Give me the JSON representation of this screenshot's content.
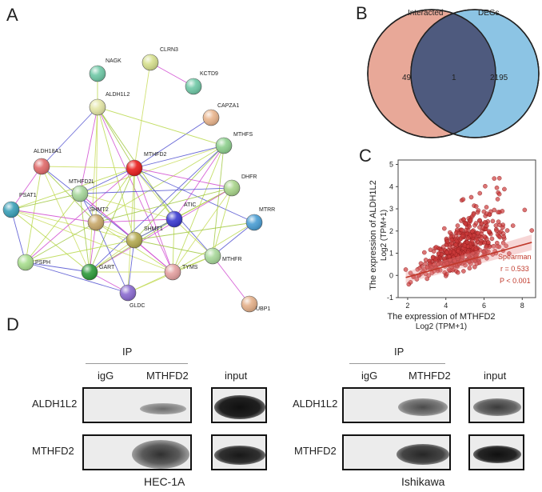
{
  "panels": {
    "a": "A",
    "b": "B",
    "c": "C",
    "d": "D"
  },
  "network": {
    "nodes": [
      {
        "id": "NAGK",
        "label": "NAGK",
        "color": "#6fc8a6"
      },
      {
        "id": "CLRN3",
        "label": "CLRN3",
        "color": "#d6e08e"
      },
      {
        "id": "KCTD9",
        "label": "KCTD9",
        "color": "#6fc8a6"
      },
      {
        "id": "ALDH1L2",
        "label": "ALDH1L2",
        "color": "#e4e6a6"
      },
      {
        "id": "CAPZA1",
        "label": "CAPZA1",
        "color": "#e9b48c"
      },
      {
        "id": "MTHFS",
        "label": "MTHFS",
        "color": "#8ed08e"
      },
      {
        "id": "ALDH18A1",
        "label": "ALDH18A1",
        "color": "#e06a6a"
      },
      {
        "id": "MTHFD2",
        "label": "MTHFD2",
        "color": "#e81c1c"
      },
      {
        "id": "DHFR",
        "label": "DHFR",
        "color": "#a8d48a"
      },
      {
        "id": "PSAT1",
        "label": "PSAT1",
        "color": "#3aa0b8"
      },
      {
        "id": "MTHFD2L",
        "label": "MTHFD2L",
        "color": "#a6d69a"
      },
      {
        "id": "ATIC",
        "label": "ATIC",
        "color": "#3a3ad0"
      },
      {
        "id": "MTRR",
        "label": "MTRR",
        "color": "#4a9ed4"
      },
      {
        "id": "SHMT2",
        "label": "SHMT2",
        "color": "#c8a86a"
      },
      {
        "id": "SHMT1",
        "label": "SHMT1",
        "color": "#b4aa50"
      },
      {
        "id": "PSPH",
        "label": "PSPH",
        "color": "#a8de8e"
      },
      {
        "id": "GART",
        "label": "GART",
        "color": "#2e9a3a"
      },
      {
        "id": "TYMS",
        "label": "TYMS",
        "color": "#e4a0a0"
      },
      {
        "id": "MTHFR",
        "label": "MTHFR",
        "color": "#a8d89a"
      },
      {
        "id": "GLDC",
        "label": "GLDC",
        "color": "#8a6ad0"
      },
      {
        "id": "UBP1",
        "label": "UBP1",
        "color": "#e4b08a"
      }
    ],
    "edges": [
      [
        "NAGK",
        "ALDH1L2"
      ],
      [
        "CLRN3",
        "MTHFD2"
      ],
      [
        "CLRN3",
        "KCTD9"
      ],
      [
        "CAPZA1",
        "MTHFD2"
      ],
      [
        "ALDH1L2",
        "MTHFD2"
      ],
      [
        "ALDH1L2",
        "SHMT1"
      ],
      [
        "ALDH1L2",
        "SHMT2"
      ],
      [
        "ALDH1L2",
        "MTHFD2L"
      ],
      [
        "ALDH1L2",
        "ALDH18A1"
      ],
      [
        "ALDH1L2",
        "ATIC"
      ],
      [
        "ALDH1L2",
        "MTHFS"
      ],
      [
        "ALDH1L2",
        "GART"
      ],
      [
        "ALDH1L2",
        "TYMS"
      ],
      [
        "MTHFS",
        "MTHFD2"
      ],
      [
        "MTHFS",
        "SHMT1"
      ],
      [
        "MTHFS",
        "SHMT2"
      ],
      [
        "MTHFS",
        "MTHFD2L"
      ],
      [
        "MTHFS",
        "ATIC"
      ],
      [
        "MTHFS",
        "GART"
      ],
      [
        "MTHFS",
        "MTHFR"
      ],
      [
        "MTHFS",
        "TYMS"
      ],
      [
        "ALDH18A1",
        "MTHFD2"
      ],
      [
        "ALDH18A1",
        "PSAT1"
      ],
      [
        "ALDH18A1",
        "SHMT1"
      ],
      [
        "ALDH18A1",
        "SHMT2"
      ],
      [
        "ALDH18A1",
        "PSPH"
      ],
      [
        "ALDH18A1",
        "GART"
      ],
      [
        "MTHFD2",
        "DHFR"
      ],
      [
        "MTHFD2",
        "MTHFD2L"
      ],
      [
        "MTHFD2",
        "SHMT1"
      ],
      [
        "MTHFD2",
        "SHMT2"
      ],
      [
        "MTHFD2",
        "ATIC"
      ],
      [
        "MTHFD2",
        "TYMS"
      ],
      [
        "MTHFD2",
        "MTHFR"
      ],
      [
        "MTHFD2",
        "GART"
      ],
      [
        "MTHFD2",
        "PSAT1"
      ],
      [
        "MTHFD2",
        "GLDC"
      ],
      [
        "MTHFD2",
        "PSPH"
      ],
      [
        "MTHFD2",
        "MTRR"
      ],
      [
        "DHFR",
        "SHMT1"
      ],
      [
        "DHFR",
        "ATIC"
      ],
      [
        "DHFR",
        "TYMS"
      ],
      [
        "DHFR",
        "GART"
      ],
      [
        "DHFR",
        "MTHFD2L"
      ],
      [
        "DHFR",
        "SHMT2"
      ],
      [
        "DHFR",
        "MTHFR"
      ],
      [
        "PSAT1",
        "SHMT1"
      ],
      [
        "PSAT1",
        "SHMT2"
      ],
      [
        "PSAT1",
        "PSPH"
      ],
      [
        "PSAT1",
        "MTHFD2L"
      ],
      [
        "PSAT1",
        "GART"
      ],
      [
        "PSAT1",
        "TYMS"
      ],
      [
        "MTHFD2L",
        "SHMT1"
      ],
      [
        "MTHFD2L",
        "SHMT2"
      ],
      [
        "MTHFD2L",
        "GART"
      ],
      [
        "MTHFD2L",
        "PSPH"
      ],
      [
        "MTHFD2L",
        "ATIC"
      ],
      [
        "MTHFD2L",
        "TYMS"
      ],
      [
        "ATIC",
        "SHMT1"
      ],
      [
        "ATIC",
        "GART"
      ],
      [
        "ATIC",
        "TYMS"
      ],
      [
        "ATIC",
        "MTHFR"
      ],
      [
        "ATIC",
        "SHMT2"
      ],
      [
        "MTRR",
        "MTHFR"
      ],
      [
        "MTRR",
        "SHMT1"
      ],
      [
        "MTRR",
        "TYMS"
      ],
      [
        "SHMT2",
        "SHMT1"
      ],
      [
        "SHMT2",
        "GART"
      ],
      [
        "SHMT2",
        "GLDC"
      ],
      [
        "SHMT2",
        "PSPH"
      ],
      [
        "SHMT2",
        "TYMS"
      ],
      [
        "SHMT1",
        "GART"
      ],
      [
        "SHMT1",
        "TYMS"
      ],
      [
        "SHMT1",
        "GLDC"
      ],
      [
        "SHMT1",
        "MTHFR"
      ],
      [
        "SHMT1",
        "PSPH"
      ],
      [
        "GART",
        "TYMS"
      ],
      [
        "GART",
        "GLDC"
      ],
      [
        "PSPH",
        "GART"
      ],
      [
        "TYMS",
        "MTHFR"
      ],
      [
        "TYMS",
        "GLDC"
      ],
      [
        "GLDC",
        "MTHFR"
      ],
      [
        "MTHFR",
        "UBP1"
      ],
      [
        "GLDC",
        "PSPH"
      ]
    ]
  },
  "venn": {
    "left_label": "Interacted",
    "right_label": "DEGs",
    "left_only": "49",
    "overlap": "1",
    "right_only": "2195",
    "left_color": "#e8a898",
    "right_color": "#8cc4e4",
    "overlap_color": "#4e5a7e"
  },
  "chart_data": {
    "type": "scatter",
    "xlabel": "The expression of MTHFD2",
    "xlabel_sub": "Log2 (TPM+1)",
    "ylabel": "The expression of ALDH1L2",
    "ylabel_sub": "Log2 (TPM+1)",
    "xlim": [
      1.5,
      8.7
    ],
    "ylim": [
      -1,
      5.2
    ],
    "xticks": [
      2,
      4,
      6,
      8
    ],
    "yticks": [
      -1,
      0,
      1,
      2,
      3,
      4,
      5
    ],
    "annotation": [
      "Spearman",
      "r = 0.533",
      "P < 0.001"
    ],
    "regression": {
      "intercept": -0.55,
      "slope": 0.24
    },
    "point_color": "#cc3a3a",
    "n_points": 540
  },
  "western": {
    "ip_label": "IP",
    "igg_label": "igG",
    "mthfd2_label": "MTHFD2",
    "input_label": "input",
    "row1": "ALDH1L2",
    "row2": "MTHFD2",
    "left_cell": "HEC-1A",
    "right_cell": "Ishikawa"
  }
}
